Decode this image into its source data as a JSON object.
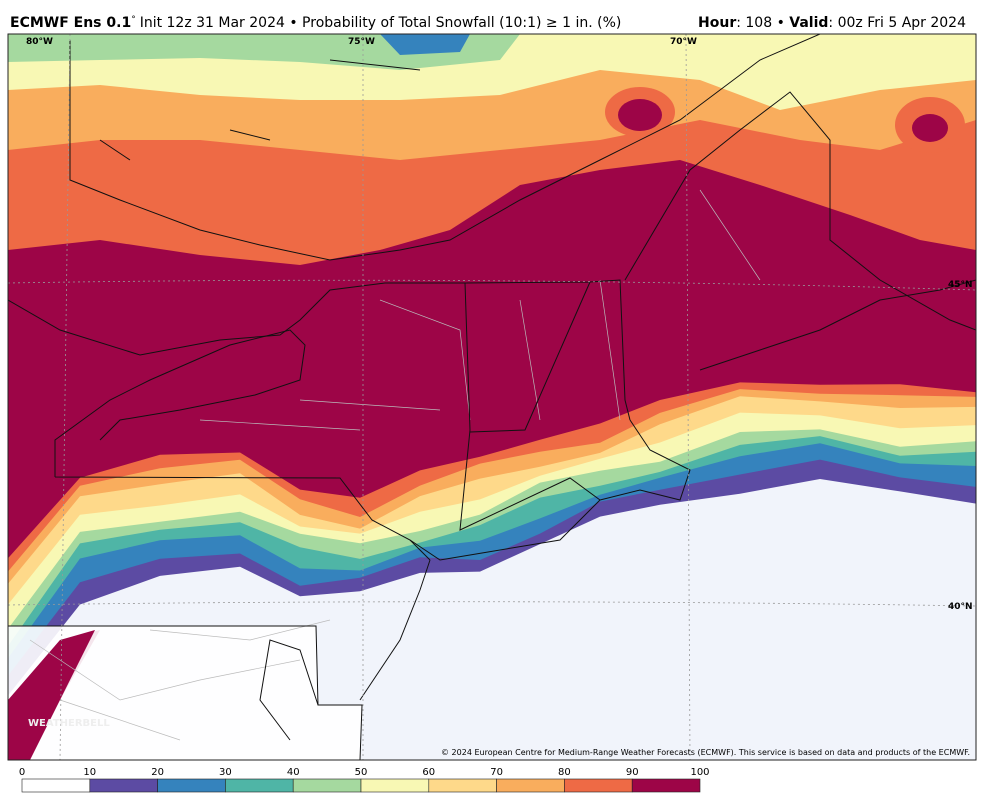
{
  "header": {
    "model": "ECMWF Ens 0.1",
    "degree": "°",
    "init": "Init 12z 31 Mar 2024 • Probability of Total Snowfall (10:1)  ≥  1 in. (%)",
    "hour_label": "Hour",
    "hour": ": 108 • ",
    "valid_label": "Valid",
    "valid": ": 00z Fri 5 Apr 2024"
  },
  "map": {
    "lon_labels": [
      "80°W",
      "75°W",
      "70°W"
    ],
    "lat_labels": [
      "45°N",
      "40°N"
    ],
    "logo": "WEATHERBELL",
    "copyright": "© 2024 European Centre for Medium-Range Weather Forecasts (ECMWF). This service is based on data and products of the ECMWF."
  },
  "legend": {
    "ticks": [
      0,
      10,
      20,
      30,
      40,
      50,
      60,
      70,
      80,
      90,
      100
    ],
    "colors": [
      "#ffffff",
      "#5c4ba3",
      "#3583bd",
      "#4fb5a6",
      "#a5d99f",
      "#f8f8b4",
      "#fed98a",
      "#f9ad5d",
      "#ee6a45",
      "#9d0547"
    ]
  }
}
